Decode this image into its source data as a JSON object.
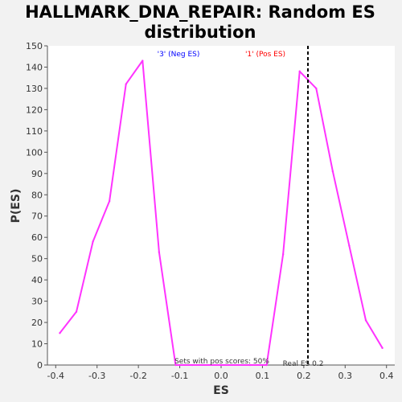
{
  "chart_data": {
    "type": "line",
    "title_line1": "HALLMARK_DNA_REPAIR: Random ES",
    "title_line2": "distribution",
    "xlabel": "ES",
    "ylabel": "P(ES)",
    "xlim": [
      -0.42,
      0.42
    ],
    "ylim": [
      0,
      150
    ],
    "xticks": [
      -0.4,
      -0.3,
      -0.2,
      -0.1,
      0.0,
      0.1,
      0.2,
      0.3,
      0.4
    ],
    "xtick_labels": [
      "-0.4",
      "-0.3",
      "-0.2",
      "-0.1",
      "0.0",
      "0.1",
      "0.2",
      "0.3",
      "0.4"
    ],
    "yticks": [
      0,
      10,
      20,
      30,
      40,
      50,
      60,
      70,
      80,
      90,
      100,
      110,
      120,
      130,
      140,
      150
    ],
    "ytick_labels": [
      "0",
      "10",
      "20",
      "30",
      "40",
      "50",
      "60",
      "70",
      "80",
      "90",
      "100",
      "110",
      "120",
      "130",
      "140",
      "150"
    ],
    "series": [
      {
        "color": "#ff33ff",
        "x": [
          -0.39,
          -0.35,
          -0.31,
          -0.27,
          -0.23,
          -0.19,
          -0.15,
          -0.11,
          -0.07,
          0.0,
          0.07,
          0.11,
          0.15,
          0.19,
          0.23,
          0.27,
          0.31,
          0.35,
          0.39
        ],
        "y": [
          15,
          25,
          58,
          77,
          132,
          143,
          53,
          0,
          0,
          0,
          0,
          0,
          52,
          138,
          130,
          91,
          56,
          21,
          8
        ]
      }
    ],
    "reference_line": {
      "x": 0.21,
      "style": "dashed",
      "color": "#000000",
      "label": "Real ES 0.2"
    },
    "annotations": {
      "neg_label": "'3' (Neg ES)",
      "neg_color": "#0000ff",
      "pos_label": "'1' (Pos ES)",
      "pos_color": "#ff0000",
      "pos_scores_label": "Sets with pos scores: 50%"
    },
    "grid": false,
    "legend": "none",
    "plot_background": "#ffffff",
    "page_background": "#f2f2f2"
  }
}
